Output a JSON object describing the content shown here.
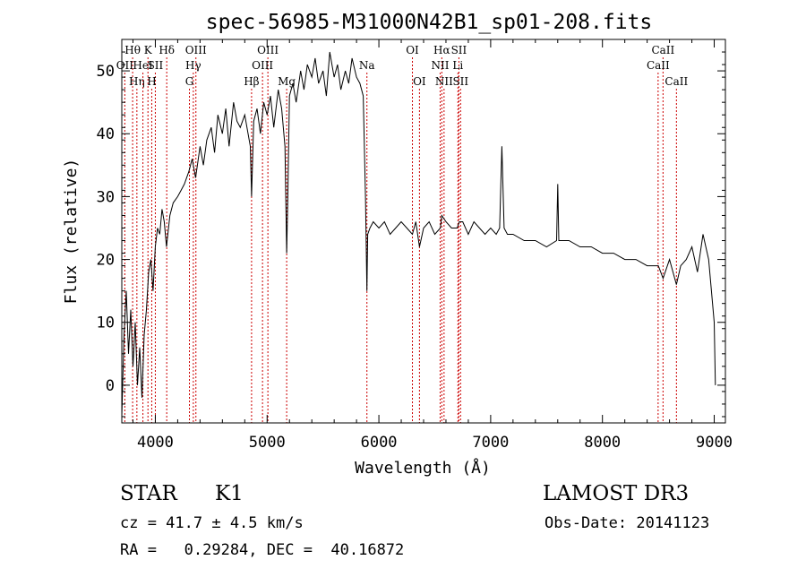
{
  "chart_data": {
    "type": "line",
    "title": "spec-56985-M31000N42B1_sp01-208.fits",
    "xlabel": "Wavelength (Å)",
    "ylabel": "Flux (relative)",
    "xlim": [
      3700,
      9100
    ],
    "ylim": [
      -6,
      55
    ],
    "x_ticks": [
      4000,
      5000,
      6000,
      7000,
      8000,
      9000
    ],
    "y_ticks": [
      0,
      10,
      20,
      30,
      40,
      50
    ],
    "grid": false,
    "line_color": "#000000",
    "marker_color": "#cc0000",
    "series": [
      {
        "x": [
          3700,
          3720,
          3740,
          3760,
          3780,
          3800,
          3820,
          3840,
          3860,
          3880,
          3900,
          3920,
          3940,
          3960,
          3980,
          4000,
          4020,
          4040,
          4060,
          4080,
          4100,
          4130,
          4160,
          4200,
          4230,
          4260,
          4300,
          4330,
          4360,
          4400,
          4430,
          4460,
          4500,
          4530,
          4560,
          4600,
          4630,
          4660,
          4700,
          4730,
          4760,
          4800,
          4830,
          4850,
          4861,
          4880,
          4910,
          4940,
          4970,
          5000,
          5030,
          5060,
          5100,
          5130,
          5160,
          5175,
          5185,
          5200,
          5230,
          5260,
          5300,
          5330,
          5360,
          5400,
          5430,
          5460,
          5500,
          5530,
          5560,
          5600,
          5630,
          5660,
          5700,
          5730,
          5760,
          5800,
          5830,
          5860,
          5880,
          5893,
          5900,
          5920,
          5950,
          6000,
          6050,
          6100,
          6150,
          6200,
          6250,
          6300,
          6330,
          6363,
          6400,
          6450,
          6500,
          6550,
          6563,
          6600,
          6650,
          6700,
          6720,
          6750,
          6800,
          6850,
          6900,
          6950,
          7000,
          7050,
          7080,
          7100,
          7120,
          7150,
          7200,
          7300,
          7400,
          7500,
          7590,
          7600,
          7610,
          7700,
          7800,
          7900,
          8000,
          8100,
          8200,
          8300,
          8400,
          8500,
          8542,
          8600,
          8662,
          8700,
          8750,
          8800,
          8850,
          8900,
          8950,
          9000,
          9010
        ],
        "y": [
          -5,
          8,
          15,
          5,
          12,
          3,
          10,
          0,
          6,
          -2,
          8,
          12,
          18,
          20,
          15,
          22,
          25,
          24,
          28,
          26,
          22,
          27,
          29,
          30,
          31,
          32,
          34,
          36,
          33,
          38,
          35,
          39,
          41,
          37,
          43,
          40,
          44,
          38,
          45,
          42,
          41,
          43,
          40,
          38,
          30,
          42,
          44,
          40,
          45,
          43,
          46,
          41,
          47,
          44,
          38,
          21,
          30,
          46,
          48,
          45,
          50,
          47,
          51,
          49,
          52,
          48,
          50,
          46,
          53,
          49,
          51,
          47,
          50,
          48,
          52,
          49,
          48,
          46,
          30,
          15,
          24,
          25,
          26,
          25,
          26,
          24,
          25,
          26,
          25,
          24,
          26,
          22,
          25,
          26,
          24,
          25,
          27,
          26,
          25,
          25,
          26,
          26,
          24,
          26,
          25,
          24,
          25,
          24,
          25,
          38,
          25,
          24,
          24,
          23,
          23,
          22,
          23,
          32,
          23,
          23,
          22,
          22,
          21,
          21,
          20,
          20,
          19,
          19,
          17,
          20,
          16,
          19,
          20,
          22,
          18,
          24,
          20,
          10,
          0
        ],
        "name": ""
      }
    ],
    "lines": [
      {
        "label": "Hθ",
        "x": 3797,
        "row": 0
      },
      {
        "label": "OII",
        "x": 3727,
        "row": 1
      },
      {
        "label": "Hη",
        "x": 3835,
        "row": 2
      },
      {
        "label": "HeI",
        "x": 3889,
        "row": 1
      },
      {
        "label": "K",
        "x": 3934,
        "row": 0
      },
      {
        "label": "SII",
        "x": 4000,
        "row": 1
      },
      {
        "label": "H",
        "x": 3968,
        "row": 2
      },
      {
        "label": "Hδ",
        "x": 4102,
        "row": 0
      },
      {
        "label": "OIII",
        "x": 4363,
        "row": 0
      },
      {
        "label": "Hγ",
        "x": 4340,
        "row": 1
      },
      {
        "label": "G",
        "x": 4305,
        "row": 2
      },
      {
        "label": "Hβ",
        "x": 4861,
        "row": 2
      },
      {
        "label": "OIII",
        "x": 5007,
        "row": 0
      },
      {
        "label": "OIII",
        "x": 4959,
        "row": 1
      },
      {
        "label": "Mg",
        "x": 5175,
        "row": 2
      },
      {
        "label": "Na",
        "x": 5893,
        "row": 1
      },
      {
        "label": "OI",
        "x": 6300,
        "row": 0
      },
      {
        "label": "OI",
        "x": 6363,
        "row": 2
      },
      {
        "label": "Hα",
        "x": 6563,
        "row": 0
      },
      {
        "label": "NII",
        "x": 6548,
        "row": 1
      },
      {
        "label": "NII",
        "x": 6583,
        "row": 2
      },
      {
        "label": "SII",
        "x": 6716,
        "row": 0
      },
      {
        "label": "Li",
        "x": 6707,
        "row": 1
      },
      {
        "label": "SII",
        "x": 6731,
        "row": 2
      },
      {
        "label": "CaII",
        "x": 8542,
        "row": 0
      },
      {
        "label": "CaII",
        "x": 8498,
        "row": 1
      },
      {
        "label": "CaII",
        "x": 8662,
        "row": 2
      }
    ]
  },
  "footer": {
    "class_label": "STAR",
    "subclass": "K1",
    "survey": "LAMOST DR3",
    "redshift": "cz = 41.7 ± 4.5 km/s",
    "obs_date": "Obs-Date: 20141123",
    "coords": "RA =   0.29284, DEC =  40.16872"
  }
}
